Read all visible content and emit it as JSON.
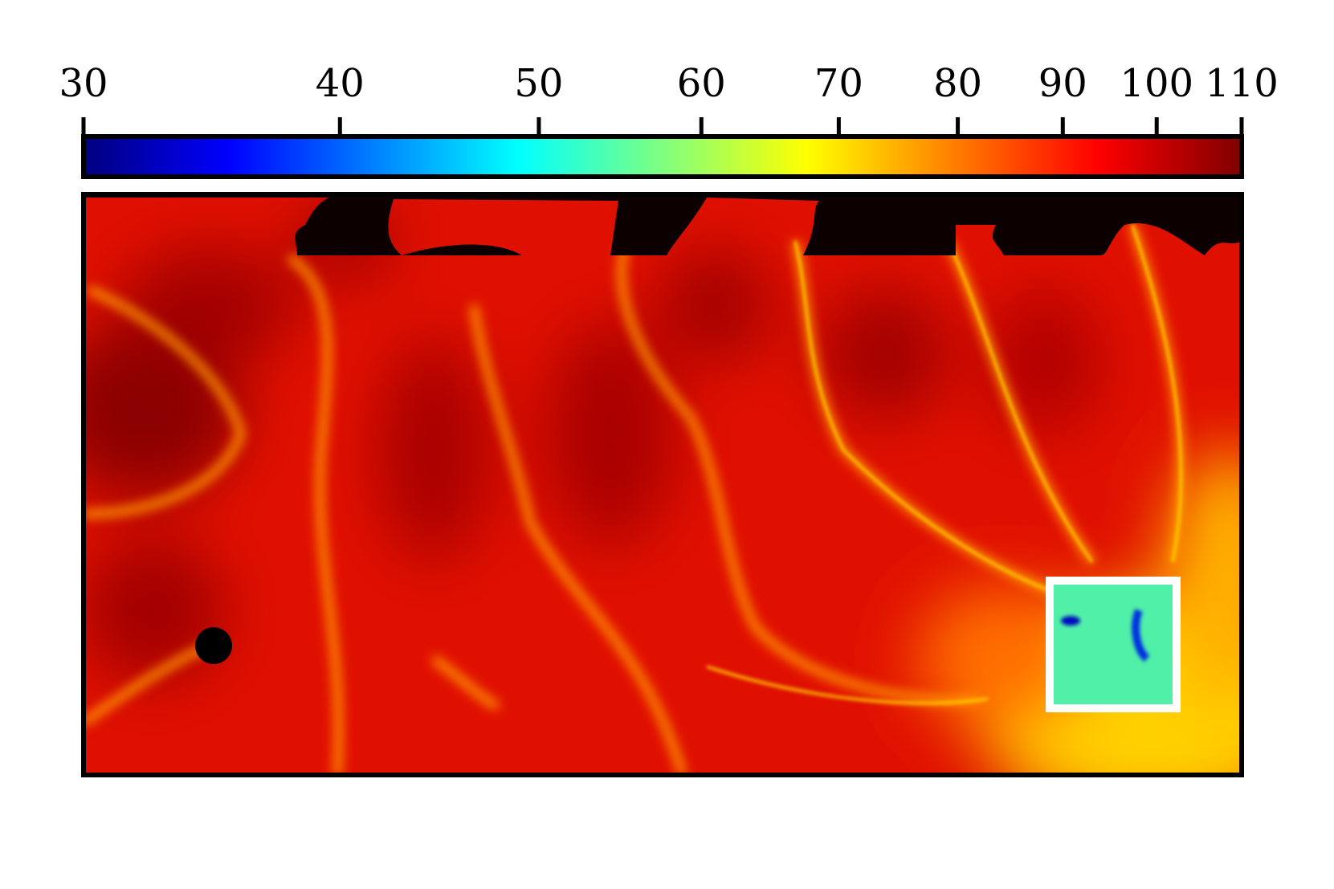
{
  "chart_data": {
    "type": "heatmap",
    "colorbar": {
      "lim": [
        30,
        110
      ],
      "ticks": [
        30,
        40,
        50,
        60,
        70,
        80,
        90,
        100,
        110
      ],
      "scale": "log",
      "colormap": "jet"
    }
  }
}
